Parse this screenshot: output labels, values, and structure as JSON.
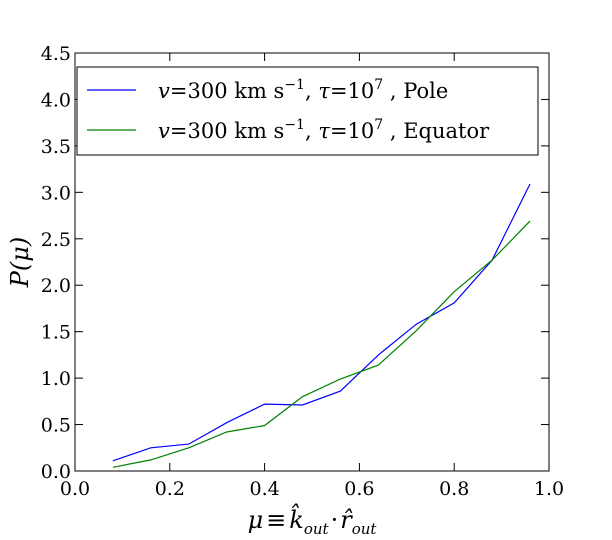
{
  "chart_data": {
    "type": "line",
    "xlabel": "μ ≡ k̂out · r̂out",
    "ylabel": "P(μ)",
    "xlim": [
      0.0,
      1.0
    ],
    "ylim": [
      0.0,
      4.5
    ],
    "xticks": [
      "0.0",
      "0.2",
      "0.4",
      "0.6",
      "0.8",
      "1.0"
    ],
    "yticks": [
      "0.0",
      "0.5",
      "1.0",
      "1.5",
      "2.0",
      "2.5",
      "3.0",
      "3.5",
      "4.0",
      "4.5"
    ],
    "x": [
      0.08,
      0.16,
      0.24,
      0.32,
      0.4,
      0.48,
      0.56,
      0.64,
      0.72,
      0.8,
      0.88,
      0.96
    ],
    "series": [
      {
        "name": "v=300 km s⁻¹, τ=10⁷ ,  Pole",
        "color": "#0000ff",
        "values": [
          0.11,
          0.25,
          0.29,
          0.52,
          0.72,
          0.71,
          0.86,
          1.25,
          1.58,
          1.81,
          2.27,
          3.09
        ]
      },
      {
        "name": "v=300  km s⁻¹, τ=10⁷ ,  Equator",
        "color": "#008000",
        "values": [
          0.04,
          0.12,
          0.25,
          0.42,
          0.49,
          0.8,
          0.99,
          1.14,
          1.51,
          1.93,
          2.27,
          2.69
        ]
      }
    ],
    "legend_position": "top-right",
    "grid": false
  }
}
